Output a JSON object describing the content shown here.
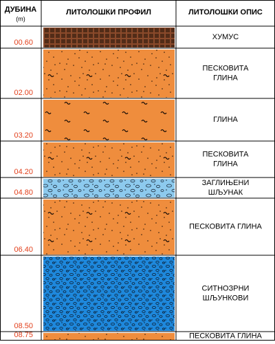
{
  "header": {
    "depth_title": "ДУБИНА",
    "depth_unit": "(m)",
    "profile_title": "ЛИТОЛОШКИ ПРОФИЛ",
    "description_title": "ЛИТОЛОШКИ ОПИС"
  },
  "layers": [
    {
      "depth": "00.60",
      "description": [
        "ХУМУС"
      ],
      "pattern": "humus"
    },
    {
      "depth": "02.00",
      "description": [
        "ПЕСКОВИТА",
        "ГЛИНА"
      ],
      "pattern": "sandy-clay"
    },
    {
      "depth": "03.20",
      "description": [
        "ГЛИНА"
      ],
      "pattern": "clay"
    },
    {
      "depth": "04.20",
      "description": [
        "ПЕСКОВИТА",
        "ГЛИНА"
      ],
      "pattern": "sandy-clay"
    },
    {
      "depth": "04.80",
      "description": [
        "ЗАГЛИЊЕНИ",
        "ШЉУНАК"
      ],
      "pattern": "gravel"
    },
    {
      "depth": "06.40",
      "description": [
        "ПЕСКОВИТА ГЛИНА"
      ],
      "pattern": "sandy-clay"
    },
    {
      "depth": "08.50",
      "description": [
        "СИТНОЗРНИ",
        "ШЉУНКОВИ"
      ],
      "pattern": "fine-gravel"
    },
    {
      "depth": "08.75",
      "description": [
        "ПЕСКОВИТА ГЛИНА"
      ],
      "pattern": "sandy-clay"
    }
  ]
}
